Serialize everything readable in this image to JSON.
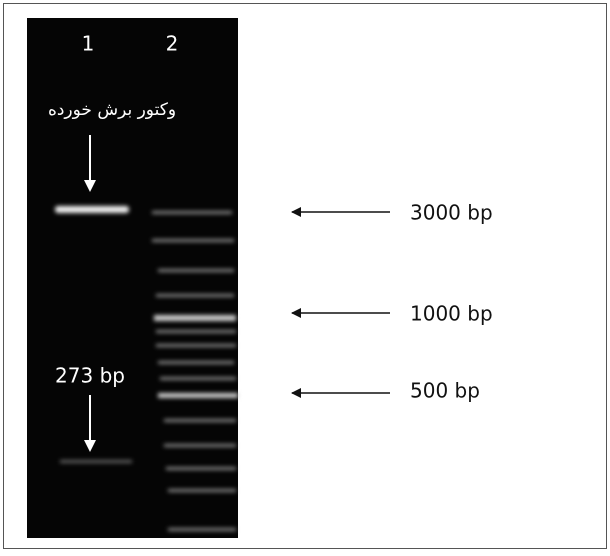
{
  "lanes": [
    "1",
    "2"
  ],
  "annotations": {
    "cut_vector": "وکتور برش خورده",
    "insert": "273 bp"
  },
  "markers": [
    "3000 bp",
    "1000 bp",
    "500 bp"
  ]
}
